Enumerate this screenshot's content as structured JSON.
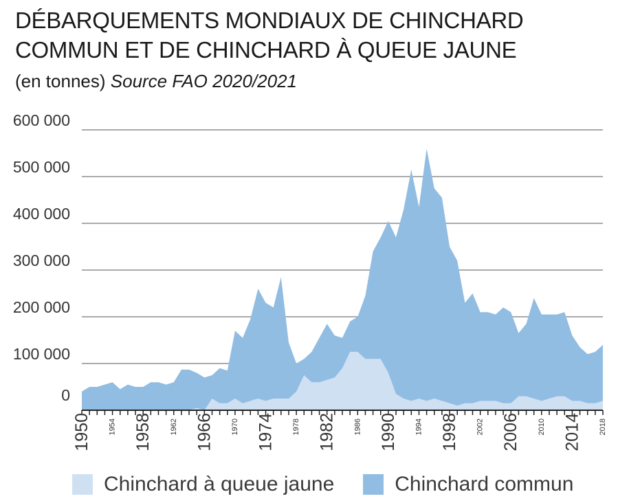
{
  "title": {
    "line1": "DÉBARQUEMENTS MONDIAUX DE CHINCHARD",
    "line2": "COMMUN ET DE CHINCHARD À QUEUE JAUNE",
    "unit": "(en tonnes)",
    "source": "Source FAO 2020/2021"
  },
  "colors": {
    "queue_jaune": "#cfe0f3",
    "commun": "#92bde2",
    "grid": "#777777",
    "axis": "#222222",
    "text": "#333333"
  },
  "chart_data": {
    "type": "area",
    "stacked": false,
    "grid": true,
    "legend_position": "bottom",
    "ylim": [
      0,
      600000
    ],
    "xlim": [
      1950,
      2018
    ],
    "y_ticks": [
      0,
      100000,
      200000,
      300000,
      400000,
      500000,
      600000
    ],
    "y_tick_labels": [
      "0",
      "100 000",
      "200 000",
      "300 000",
      "400 000",
      "500 000",
      "600 000"
    ],
    "x_ticks_major": [
      1950,
      1958,
      1966,
      1974,
      1982,
      1990,
      1998,
      2006,
      2014
    ],
    "x_ticks_minor": [
      1954,
      1962,
      1970,
      1978,
      1986,
      1994,
      2002,
      2010,
      2018
    ],
    "x": [
      1950,
      1951,
      1952,
      1953,
      1954,
      1955,
      1956,
      1957,
      1958,
      1959,
      1960,
      1961,
      1962,
      1963,
      1964,
      1965,
      1966,
      1967,
      1968,
      1969,
      1970,
      1971,
      1972,
      1973,
      1974,
      1975,
      1976,
      1977,
      1978,
      1979,
      1980,
      1981,
      1982,
      1983,
      1984,
      1985,
      1986,
      1987,
      1988,
      1989,
      1990,
      1991,
      1992,
      1993,
      1994,
      1995,
      1996,
      1997,
      1998,
      1999,
      2000,
      2001,
      2002,
      2003,
      2004,
      2005,
      2006,
      2007,
      2008,
      2009,
      2010,
      2011,
      2012,
      2013,
      2014,
      2015,
      2016,
      2017,
      2018
    ],
    "series": [
      {
        "name": "Chinchard commun",
        "color_key": "commun",
        "values": [
          40000,
          50000,
          50000,
          55000,
          60000,
          45000,
          55000,
          50000,
          50000,
          60000,
          60000,
          55000,
          60000,
          87000,
          87000,
          80000,
          70000,
          75000,
          90000,
          85000,
          170000,
          155000,
          195000,
          260000,
          230000,
          220000,
          285000,
          145000,
          100000,
          110000,
          125000,
          155000,
          185000,
          160000,
          155000,
          190000,
          200000,
          245000,
          340000,
          370000,
          405000,
          370000,
          430000,
          515000,
          435000,
          560000,
          475000,
          455000,
          350000,
          320000,
          230000,
          250000,
          210000,
          210000,
          205000,
          220000,
          210000,
          165000,
          185000,
          240000,
          205000,
          205000,
          205000,
          210000,
          160000,
          135000,
          120000,
          125000,
          140000
        ]
      },
      {
        "name": "Chinchard à queue jaune",
        "color_key": "queue_jaune",
        "values": [
          0,
          0,
          0,
          0,
          0,
          0,
          0,
          0,
          0,
          0,
          0,
          0,
          0,
          0,
          0,
          5000,
          0,
          25000,
          15000,
          15000,
          25000,
          15000,
          20000,
          25000,
          20000,
          25000,
          25000,
          25000,
          40000,
          75000,
          60000,
          60000,
          65000,
          70000,
          90000,
          125000,
          125000,
          110000,
          110000,
          110000,
          80000,
          35000,
          25000,
          20000,
          25000,
          20000,
          25000,
          20000,
          15000,
          10000,
          15000,
          15000,
          20000,
          20000,
          20000,
          15000,
          15000,
          30000,
          30000,
          25000,
          20000,
          25000,
          30000,
          30000,
          20000,
          20000,
          15000,
          15000,
          20000
        ]
      }
    ]
  },
  "legend": {
    "item1": "Chinchard à queue jaune",
    "item2": "Chinchard commun"
  }
}
